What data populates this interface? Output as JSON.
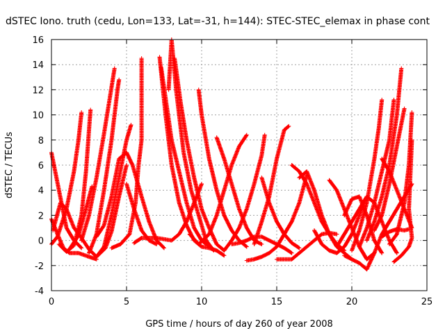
{
  "chart_data": {
    "type": "scatter",
    "title": "dSTEC Iono. truth (cedu, Lon=133, Lat=-31, h=144): STEC-STEC_elemax in phase cont",
    "xlabel": "GPS time / hours of day 260 of year 2008",
    "ylabel": "dSTEC  / TECUs",
    "xlim": [
      0,
      25
    ],
    "ylim": [
      -4,
      16
    ],
    "xticks": [
      0,
      5,
      10,
      15,
      20,
      25
    ],
    "yticks": [
      -4,
      -2,
      0,
      2,
      4,
      6,
      8,
      10,
      12,
      14,
      16
    ],
    "grid": true,
    "marker": "+",
    "color": "#ff0000",
    "arcs": [
      [
        [
          0.0,
          7.0
        ],
        [
          0.5,
          4.0
        ],
        [
          1.0,
          1.0
        ],
        [
          1.5,
          0.0
        ],
        [
          2.0,
          -0.6
        ]
      ],
      [
        [
          0.0,
          1.7
        ],
        [
          0.4,
          0.5
        ],
        [
          0.8,
          -0.6
        ],
        [
          1.2,
          -1.0
        ],
        [
          1.8,
          -1.0
        ],
        [
          2.5,
          -1.3
        ],
        [
          3.0,
          -1.5
        ]
      ],
      [
        [
          0.0,
          -0.3
        ],
        [
          0.4,
          0.3
        ],
        [
          1.0,
          2.5
        ],
        [
          1.5,
          5.5
        ],
        [
          1.8,
          8.0
        ],
        [
          2.0,
          10.2
        ]
      ],
      [
        [
          0.1,
          0.8
        ],
        [
          0.6,
          3.0
        ],
        [
          1.0,
          2.5
        ],
        [
          1.5,
          1.0
        ],
        [
          2.0,
          0.2
        ],
        [
          2.5,
          -0.7
        ],
        [
          3.0,
          -1.3
        ],
        [
          3.6,
          -0.6
        ],
        [
          4.0,
          0.7
        ],
        [
          4.5,
          3.5
        ],
        [
          5.0,
          6.0
        ]
      ],
      [
        [
          0.5,
          -0.3
        ],
        [
          1.0,
          -0.9
        ],
        [
          1.5,
          -0.4
        ],
        [
          2.0,
          2.0
        ],
        [
          2.3,
          5.5
        ],
        [
          2.6,
          10.4
        ]
      ],
      [
        [
          1.2,
          -0.7
        ],
        [
          1.8,
          0.4
        ],
        [
          2.3,
          2.5
        ],
        [
          2.7,
          4.3
        ]
      ],
      [
        [
          2.0,
          0.0
        ],
        [
          2.5,
          2.0
        ],
        [
          3.0,
          5.0
        ],
        [
          3.5,
          8.5
        ],
        [
          4.0,
          12.2
        ],
        [
          4.2,
          13.7
        ]
      ],
      [
        [
          2.5,
          -1.0
        ],
        [
          3.0,
          0.5
        ],
        [
          3.5,
          4.0
        ],
        [
          4.0,
          8.0
        ],
        [
          4.4,
          12.0
        ],
        [
          4.5,
          12.8
        ]
      ],
      [
        [
          3.0,
          -1.3
        ],
        [
          3.5,
          -0.5
        ],
        [
          4.0,
          2.0
        ],
        [
          4.5,
          5.0
        ],
        [
          5.0,
          8.0
        ],
        [
          5.3,
          9.2
        ]
      ],
      [
        [
          3.0,
          0.3
        ],
        [
          3.5,
          1.2
        ],
        [
          4.0,
          3.5
        ],
        [
          4.5,
          6.5
        ],
        [
          5.0,
          7.0
        ],
        [
          5.4,
          6.0
        ],
        [
          6.0,
          3.5
        ],
        [
          6.5,
          1.5
        ],
        [
          7.0,
          0.0
        ],
        [
          7.5,
          -0.6
        ]
      ],
      [
        [
          4.0,
          -0.6
        ],
        [
          4.6,
          -0.3
        ],
        [
          5.2,
          0.5
        ],
        [
          5.6,
          3.0
        ],
        [
          5.8,
          6.0
        ],
        [
          6.0,
          8.0
        ],
        [
          6.0,
          14.5
        ]
      ],
      [
        [
          5.0,
          4.5
        ],
        [
          5.5,
          2.5
        ],
        [
          6.0,
          0.8
        ],
        [
          6.5,
          0.0
        ],
        [
          7.0,
          -0.3
        ]
      ],
      [
        [
          5.5,
          -0.2
        ],
        [
          6.0,
          0.2
        ],
        [
          7.0,
          0.2
        ],
        [
          8.0,
          0.0
        ],
        [
          8.5,
          0.5
        ],
        [
          9.0,
          1.5
        ],
        [
          9.5,
          3.0
        ],
        [
          10.0,
          4.5
        ]
      ],
      [
        [
          7.2,
          14.6
        ],
        [
          7.6,
          10.0
        ],
        [
          8.0,
          6.0
        ],
        [
          8.5,
          3.0
        ],
        [
          9.0,
          1.2
        ],
        [
          9.5,
          0.0
        ],
        [
          10.0,
          -0.5
        ],
        [
          10.5,
          -0.6
        ],
        [
          11.0,
          -0.8
        ],
        [
          11.5,
          -1.2
        ]
      ],
      [
        [
          7.3,
          13.8
        ],
        [
          7.7,
          10.5
        ],
        [
          8.0,
          8.0
        ],
        [
          8.5,
          5.5
        ],
        [
          9.0,
          3.0
        ],
        [
          9.5,
          1.0
        ],
        [
          10.0,
          0.0
        ],
        [
          10.5,
          -0.5
        ]
      ],
      [
        [
          7.8,
          12.0
        ],
        [
          8.0,
          16.0
        ],
        [
          8.3,
          12.0
        ],
        [
          8.8,
          7.0
        ],
        [
          9.3,
          4.0
        ],
        [
          9.8,
          2.0
        ],
        [
          10.3,
          0.0
        ],
        [
          10.8,
          -0.8
        ]
      ],
      [
        [
          8.2,
          14.5
        ],
        [
          8.6,
          11.0
        ],
        [
          9.0,
          8.0
        ],
        [
          9.5,
          5.0
        ],
        [
          10.0,
          2.5
        ],
        [
          10.5,
          1.0
        ],
        [
          11.0,
          -0.3
        ],
        [
          11.5,
          -0.8
        ]
      ],
      [
        [
          9.8,
          12.0
        ],
        [
          10.0,
          10.0
        ],
        [
          10.5,
          6.5
        ],
        [
          11.0,
          4.0
        ],
        [
          11.5,
          2.0
        ],
        [
          12.0,
          0.8
        ],
        [
          12.5,
          0.0
        ],
        [
          13.0,
          -0.5
        ]
      ],
      [
        [
          9.2,
          0.5
        ],
        [
          9.8,
          -0.3
        ],
        [
          10.5,
          0.5
        ],
        [
          11.0,
          2.0
        ],
        [
          11.5,
          4.0
        ],
        [
          12.0,
          6.0
        ],
        [
          12.5,
          7.5
        ],
        [
          13.0,
          8.4
        ]
      ],
      [
        [
          11.0,
          8.2
        ],
        [
          11.5,
          6.5
        ],
        [
          12.0,
          4.5
        ],
        [
          12.5,
          2.5
        ],
        [
          13.0,
          1.0
        ],
        [
          13.5,
          0.0
        ],
        [
          14.0,
          -0.3
        ]
      ],
      [
        [
          11.5,
          -0.8
        ],
        [
          12.0,
          0.0
        ],
        [
          12.5,
          1.0
        ],
        [
          13.0,
          2.5
        ],
        [
          13.5,
          4.5
        ],
        [
          14.0,
          6.8
        ],
        [
          14.2,
          8.4
        ]
      ],
      [
        [
          12.0,
          -0.3
        ],
        [
          12.5,
          -0.2
        ],
        [
          13.0,
          0.0
        ],
        [
          13.5,
          0.3
        ],
        [
          14.0,
          0.3
        ],
        [
          14.5,
          0.0
        ],
        [
          15.0,
          -0.3
        ],
        [
          15.5,
          -0.6
        ],
        [
          16.0,
          -1.0
        ]
      ],
      [
        [
          13.0,
          -1.6
        ],
        [
          13.5,
          -1.5
        ],
        [
          14.0,
          -1.3
        ],
        [
          14.5,
          -1.0
        ],
        [
          15.0,
          -0.5
        ],
        [
          15.5,
          0.5
        ],
        [
          16.0,
          1.5
        ],
        [
          16.5,
          3.0
        ],
        [
          17.0,
          5.2
        ]
      ],
      [
        [
          13.5,
          -0.3
        ],
        [
          14.0,
          1.5
        ],
        [
          14.5,
          3.5
        ],
        [
          15.0,
          6.5
        ],
        [
          15.5,
          8.8
        ],
        [
          15.8,
          9.1
        ]
      ],
      [
        [
          14.0,
          5.0
        ],
        [
          14.5,
          3.0
        ],
        [
          15.0,
          1.5
        ],
        [
          15.5,
          0.5
        ],
        [
          16.0,
          -0.2
        ],
        [
          16.5,
          -0.6
        ]
      ],
      [
        [
          15.0,
          -1.5
        ],
        [
          16.0,
          -1.5
        ],
        [
          16.5,
          -1.0
        ],
        [
          17.0,
          -0.5
        ],
        [
          17.5,
          0.0
        ],
        [
          18.0,
          0.5
        ],
        [
          18.5,
          0.6
        ],
        [
          19.0,
          0.5
        ]
      ],
      [
        [
          16.0,
          6.0
        ],
        [
          16.5,
          5.5
        ],
        [
          17.0,
          4.5
        ],
        [
          17.5,
          3.0
        ],
        [
          18.0,
          1.5
        ],
        [
          18.5,
          0.5
        ],
        [
          19.0,
          -0.3
        ],
        [
          19.5,
          -0.8
        ]
      ],
      [
        [
          16.5,
          5.0
        ],
        [
          17.0,
          5.5
        ],
        [
          17.5,
          4.0
        ],
        [
          18.0,
          2.0
        ],
        [
          18.5,
          0.5
        ],
        [
          19.0,
          -0.5
        ],
        [
          19.5,
          -1.0
        ],
        [
          20.0,
          -1.5
        ]
      ],
      [
        [
          17.5,
          0.8
        ],
        [
          18.0,
          -0.3
        ],
        [
          18.5,
          -0.8
        ],
        [
          19.0,
          -1.0
        ],
        [
          19.5,
          -0.5
        ],
        [
          20.0,
          0.5
        ],
        [
          20.5,
          2.0
        ],
        [
          21.0,
          3.5
        ]
      ],
      [
        [
          18.5,
          4.8
        ],
        [
          19.0,
          4.0
        ],
        [
          19.5,
          2.5
        ],
        [
          20.0,
          1.0
        ],
        [
          20.5,
          -0.5
        ],
        [
          21.0,
          -1.5
        ],
        [
          21.5,
          -1.0
        ]
      ],
      [
        [
          19.0,
          -0.5
        ],
        [
          19.5,
          0.5
        ],
        [
          20.0,
          1.5
        ],
        [
          20.5,
          2.5
        ],
        [
          21.0,
          3.5
        ],
        [
          21.5,
          3.0
        ],
        [
          22.0,
          1.5
        ],
        [
          22.5,
          0.0
        ],
        [
          23.0,
          -1.0
        ]
      ],
      [
        [
          19.5,
          2.0
        ],
        [
          20.0,
          3.3
        ],
        [
          20.5,
          3.5
        ],
        [
          21.0,
          2.0
        ],
        [
          21.5,
          0.0
        ],
        [
          22.0,
          -1.0
        ]
      ],
      [
        [
          19.5,
          -1.2
        ],
        [
          20.0,
          -1.5
        ],
        [
          20.5,
          -1.8
        ],
        [
          21.0,
          -2.3
        ],
        [
          21.5,
          -1.0
        ],
        [
          22.0,
          0.5
        ],
        [
          22.5,
          1.5
        ],
        [
          23.0,
          2.5
        ],
        [
          23.5,
          3.5
        ],
        [
          24.0,
          4.5
        ]
      ],
      [
        [
          20.0,
          -0.8
        ],
        [
          20.5,
          0.8
        ],
        [
          21.0,
          3.0
        ],
        [
          21.5,
          6.5
        ],
        [
          21.8,
          9.0
        ],
        [
          22.0,
          11.2
        ]
      ],
      [
        [
          20.5,
          -0.5
        ],
        [
          21.0,
          1.0
        ],
        [
          21.5,
          3.0
        ],
        [
          22.0,
          5.5
        ],
        [
          22.5,
          8.0
        ],
        [
          22.8,
          11.2
        ]
      ],
      [
        [
          21.0,
          0.0
        ],
        [
          21.5,
          1.5
        ],
        [
          22.0,
          3.5
        ],
        [
          22.5,
          6.0
        ],
        [
          23.0,
          10.0
        ],
        [
          23.3,
          13.7
        ]
      ],
      [
        [
          21.5,
          0.8
        ],
        [
          22.0,
          2.0
        ],
        [
          22.5,
          4.5
        ],
        [
          23.0,
          7.5
        ],
        [
          23.5,
          10.5
        ]
      ],
      [
        [
          22.0,
          6.5
        ],
        [
          22.5,
          5.5
        ],
        [
          23.0,
          4.0
        ],
        [
          23.5,
          2.5
        ],
        [
          24.0,
          1.0
        ]
      ],
      [
        [
          22.5,
          -0.3
        ],
        [
          23.0,
          0.5
        ],
        [
          23.5,
          3.0
        ],
        [
          23.8,
          6.0
        ],
        [
          24.0,
          10.2
        ]
      ],
      [
        [
          22.8,
          -1.7
        ],
        [
          23.3,
          -1.2
        ],
        [
          23.8,
          -0.5
        ],
        [
          24.0,
          0.2
        ],
        [
          23.8,
          2.5
        ],
        [
          24.0,
          8.0
        ]
      ],
      [
        [
          22.0,
          0.3
        ],
        [
          22.5,
          0.7
        ],
        [
          23.0,
          0.9
        ],
        [
          23.5,
          0.8
        ],
        [
          23.8,
          0.9
        ]
      ]
    ]
  }
}
